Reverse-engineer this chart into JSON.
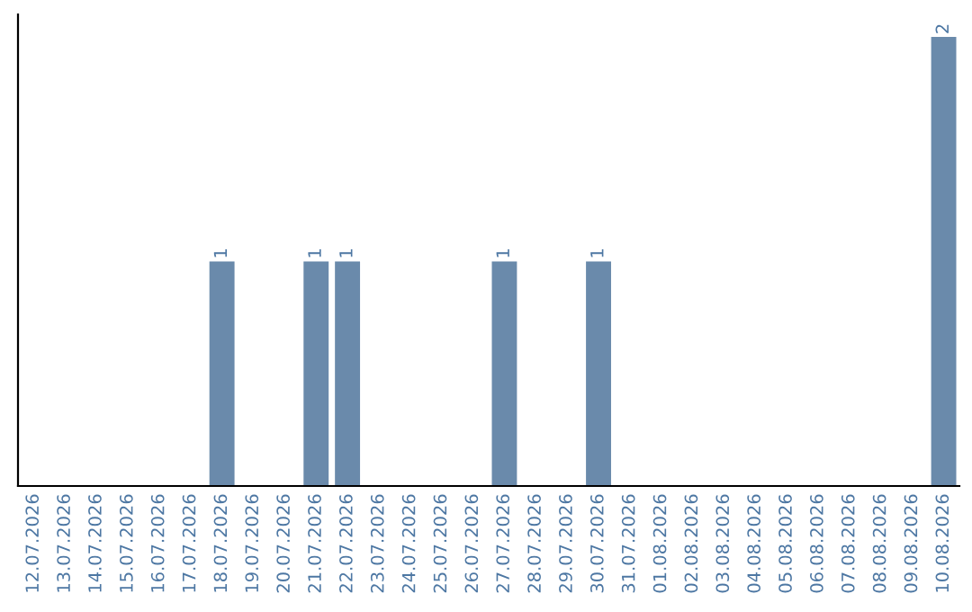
{
  "chart_data": {
    "type": "bar",
    "categories": [
      "12.07.2026",
      "13.07.2026",
      "14.07.2026",
      "15.07.2026",
      "16.07.2026",
      "17.07.2026",
      "18.07.2026",
      "19.07.2026",
      "20.07.2026",
      "21.07.2026",
      "22.07.2026",
      "23.07.2026",
      "24.07.2026",
      "25.07.2026",
      "26.07.2026",
      "27.07.2026",
      "28.07.2026",
      "29.07.2026",
      "30.07.2026",
      "31.07.2026",
      "01.08.2026",
      "02.08.2026",
      "03.08.2026",
      "04.08.2026",
      "05.08.2026",
      "06.08.2026",
      "07.08.2026",
      "08.08.2026",
      "09.08.2026",
      "10.08.2026"
    ],
    "values": [
      0,
      0,
      0,
      0,
      0,
      0,
      1,
      0,
      0,
      1,
      1,
      0,
      0,
      0,
      0,
      1,
      0,
      0,
      1,
      0,
      0,
      0,
      0,
      0,
      0,
      0,
      0,
      0,
      0,
      2
    ],
    "value_labels": [
      null,
      null,
      null,
      null,
      null,
      null,
      "1",
      null,
      null,
      "1",
      "1",
      null,
      null,
      null,
      null,
      "1",
      null,
      null,
      "1",
      null,
      null,
      null,
      null,
      null,
      null,
      null,
      null,
      null,
      null,
      "2"
    ],
    "color": "#6a8aab",
    "tick_labels": "x",
    "grid": false,
    "legend": false
  }
}
